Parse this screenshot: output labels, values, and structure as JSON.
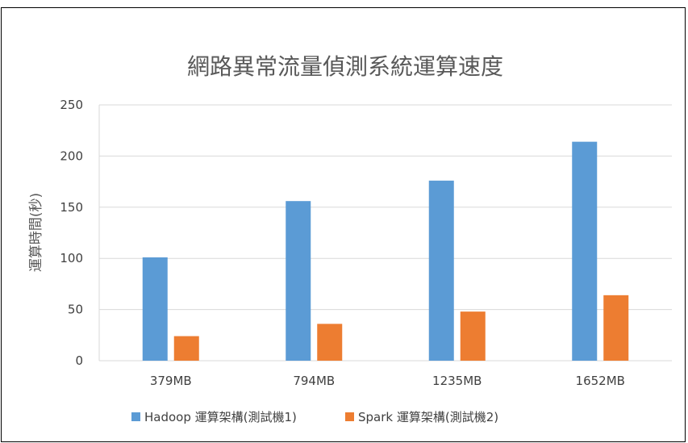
{
  "chart_data": {
    "type": "bar",
    "title": "網路異常流量偵測系統運算速度",
    "xlabel": "",
    "ylabel": "運算時間(秒)",
    "ylim": [
      0,
      250
    ],
    "yticks": [
      0,
      50,
      100,
      150,
      200,
      250
    ],
    "grid": true,
    "legend_position": "bottom",
    "categories": [
      "379MB",
      "794MB",
      "1235MB",
      "1652MB"
    ],
    "series": [
      {
        "name": "Hadoop 運算架構(測試機1)",
        "color": "#5B9BD5",
        "values": [
          101,
          156,
          176,
          214
        ]
      },
      {
        "name": "Spark 運算架構(測試機2)",
        "color": "#ED7D31",
        "values": [
          24,
          36,
          48,
          64
        ]
      }
    ]
  }
}
